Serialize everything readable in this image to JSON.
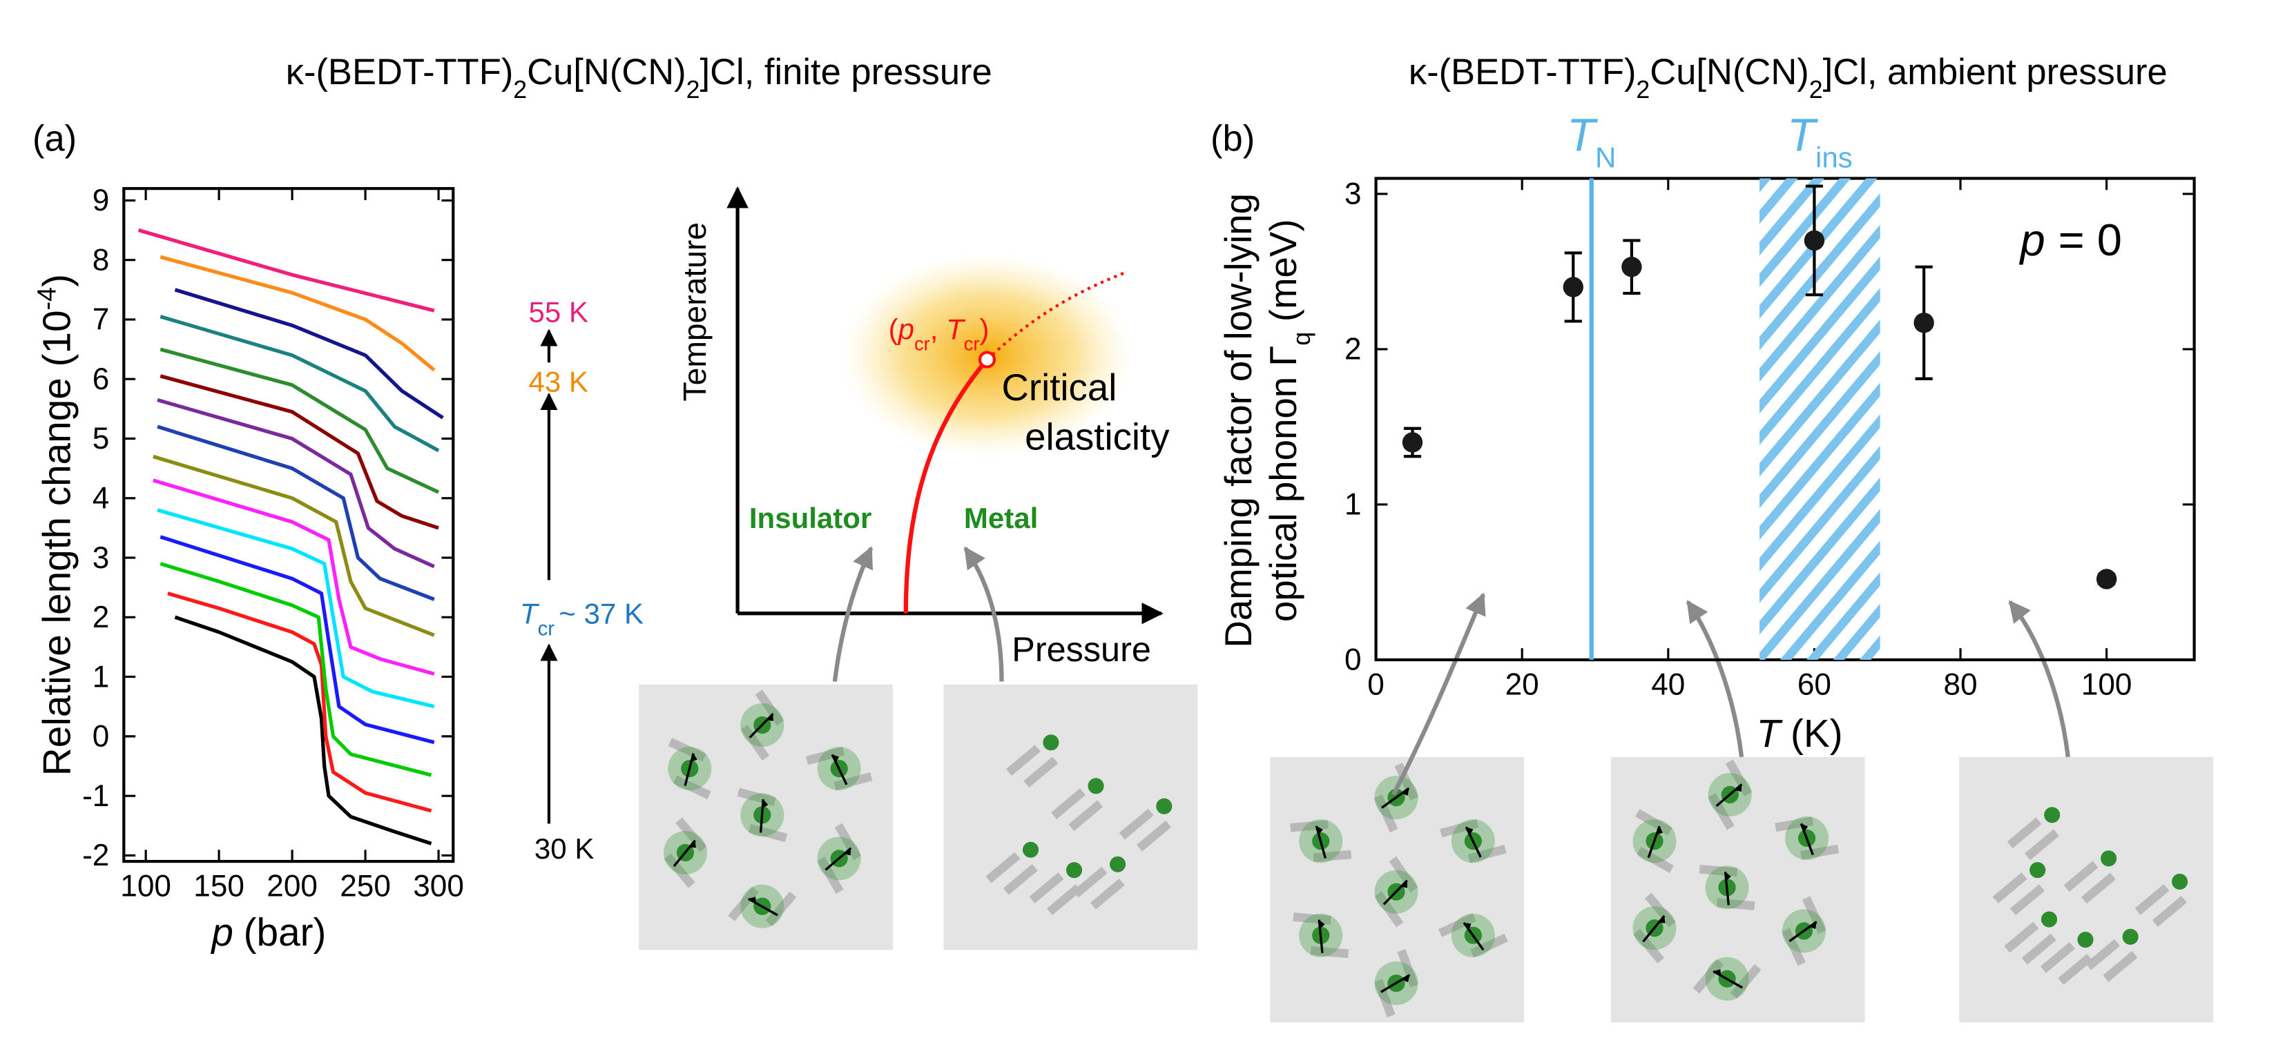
{
  "chart_data": [
    {
      "type": "line",
      "panel_label": "(a)",
      "title_parts": [
        "κ-(BEDT-TTF)",
        "2",
        "Cu[N(CN)",
        "2",
        "]Cl, finite pressure"
      ],
      "xlabel_parts": [
        "p",
        "(bar)"
      ],
      "ylabel_parts": [
        "Relative length change (10",
        "-4",
        ")"
      ],
      "xlim": [
        85,
        310
      ],
      "ylim": [
        -2.1,
        9.2
      ],
      "xticks": [
        100,
        150,
        200,
        250,
        300
      ],
      "yticks": [
        -2,
        -1,
        0,
        1,
        2,
        3,
        4,
        5,
        6,
        7,
        8,
        9
      ],
      "series": [
        {
          "color": "#000000",
          "x": [
            120,
            150,
            200,
            215,
            220,
            222,
            225,
            240,
            270,
            295
          ],
          "values": [
            2.0,
            1.75,
            1.25,
            1.0,
            0.3,
            -0.5,
            -1.0,
            -1.35,
            -1.6,
            -1.8
          ]
        },
        {
          "color": "#ff1a1a",
          "x": [
            115,
            150,
            200,
            215,
            220,
            223,
            228,
            250,
            295
          ],
          "values": [
            2.4,
            2.15,
            1.75,
            1.55,
            1.2,
            0.0,
            -0.6,
            -0.95,
            -1.25
          ]
        },
        {
          "color": "#00cc00",
          "x": [
            110,
            150,
            200,
            218,
            223,
            228,
            240,
            295
          ],
          "values": [
            2.9,
            2.6,
            2.2,
            2.0,
            0.8,
            0.0,
            -0.3,
            -0.65
          ]
        },
        {
          "color": "#1a1aff",
          "x": [
            110,
            200,
            220,
            225,
            232,
            250,
            297
          ],
          "values": [
            3.35,
            2.65,
            2.4,
            1.6,
            0.5,
            0.2,
            -0.1
          ]
        },
        {
          "color": "#00e5ff",
          "x": [
            108,
            200,
            222,
            228,
            235,
            255,
            297
          ],
          "values": [
            3.8,
            3.15,
            2.9,
            2.0,
            1.0,
            0.75,
            0.5
          ]
        },
        {
          "color": "#ff22ff",
          "x": [
            105,
            200,
            225,
            232,
            240,
            260,
            297
          ],
          "values": [
            4.3,
            3.6,
            3.3,
            2.3,
            1.5,
            1.3,
            1.05
          ]
        },
        {
          "color": "#8c8c14",
          "x": [
            105,
            200,
            230,
            240,
            250,
            297
          ],
          "values": [
            4.7,
            4.0,
            3.6,
            2.6,
            2.15,
            1.7
          ]
        },
        {
          "color": "#2040b0",
          "x": [
            108,
            200,
            235,
            245,
            260,
            297
          ],
          "values": [
            5.2,
            4.5,
            4.0,
            3.0,
            2.65,
            2.3
          ]
        },
        {
          "color": "#7a2a9a",
          "x": [
            108,
            200,
            240,
            252,
            270,
            297
          ],
          "values": [
            5.65,
            5.0,
            4.4,
            3.5,
            3.15,
            2.85
          ]
        },
        {
          "color": "#8b0000",
          "x": [
            110,
            200,
            245,
            258,
            275,
            300
          ],
          "values": [
            6.05,
            5.45,
            4.75,
            3.95,
            3.7,
            3.5
          ]
        },
        {
          "color": "#2e8b2e",
          "x": [
            110,
            200,
            250,
            265,
            300
          ],
          "values": [
            6.5,
            5.9,
            5.15,
            4.5,
            4.1
          ]
        },
        {
          "color": "#1a8080",
          "x": [
            110,
            200,
            250,
            270,
            300
          ],
          "values": [
            7.05,
            6.4,
            5.8,
            5.2,
            4.8
          ]
        },
        {
          "color": "#14148c",
          "x": [
            120,
            200,
            250,
            275,
            303
          ],
          "values": [
            7.5,
            6.9,
            6.4,
            5.8,
            5.35
          ]
        },
        {
          "color": "#ff8c1a",
          "x": [
            110,
            200,
            250,
            275,
            297
          ],
          "values": [
            8.05,
            7.45,
            7.0,
            6.6,
            6.15
          ]
        },
        {
          "color": "#f0207a",
          "x": [
            95,
            200,
            297
          ],
          "values": [
            8.5,
            7.75,
            7.15
          ]
        }
      ],
      "annotations": [
        {
          "parts": [
            "55 K"
          ],
          "color": "#e8207c"
        },
        {
          "parts": [
            "43 K"
          ],
          "color": "#f08a00"
        },
        {
          "parts": [
            "T",
            "cr",
            "~ 37 K"
          ],
          "color": "#1e78c0"
        },
        {
          "parts": [
            "30 K"
          ],
          "color": "#000000"
        }
      ]
    },
    {
      "type": "scatter",
      "panel_label": "(b)",
      "title_parts": [
        "κ-(BEDT-TTF)",
        "2",
        "Cu[N(CN)",
        "2",
        "]Cl, ambient pressure"
      ],
      "xlabel_parts": [
        "T",
        "(K)"
      ],
      "ylabel_parts": [
        "Damping factor of low-lying",
        "optical phonon Γ",
        "q",
        "(meV)"
      ],
      "x": [
        5,
        27,
        35,
        60,
        75,
        100
      ],
      "values": [
        1.4,
        2.4,
        2.53,
        2.7,
        2.17,
        0.52
      ],
      "errors": [
        0.09,
        0.22,
        0.17,
        0.35,
        0.36,
        0.03
      ],
      "xlim": [
        0,
        112
      ],
      "ylim": [
        0,
        3.1
      ],
      "xticks": [
        0,
        20,
        40,
        60,
        80,
        100
      ],
      "yticks": [
        0,
        1,
        2,
        3
      ],
      "annotation_parts": [
        "p",
        "= 0"
      ],
      "tn": {
        "x": 29.5,
        "parts": [
          "T",
          "N"
        ],
        "color": "#5ab4e8"
      },
      "tins": {
        "range": [
          52.5,
          69
        ],
        "parts": [
          "T",
          "ins"
        ],
        "color": "#5ab4e8"
      }
    }
  ],
  "diagram": {
    "ylabel": "Temperature",
    "xlabel": "Pressure",
    "insulator": "Insulator",
    "metal": "Metal",
    "critical": [
      "Critical",
      "elasticity"
    ],
    "point_parts": [
      "(",
      "p",
      "cr",
      ", ",
      "T",
      "cr",
      ")"
    ]
  }
}
